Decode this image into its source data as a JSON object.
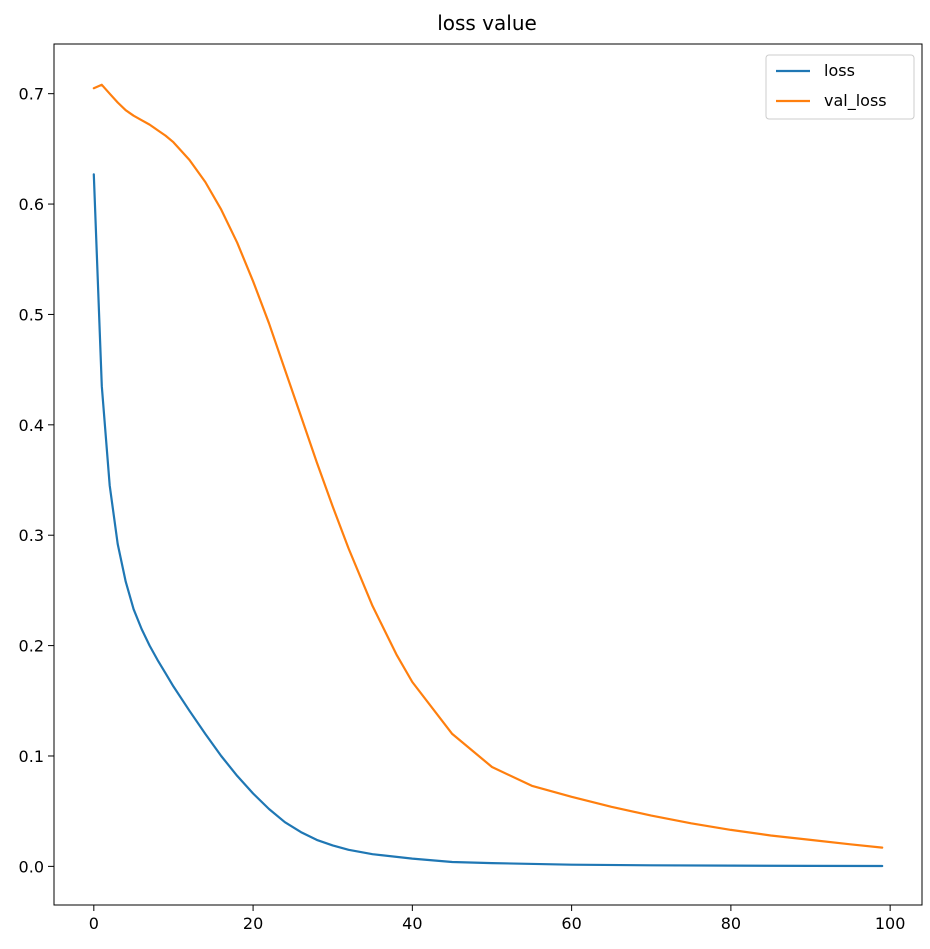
{
  "chart_data": {
    "type": "line",
    "title": "loss value",
    "xlabel": "",
    "ylabel": "",
    "xlim": [
      -5,
      104
    ],
    "ylim": [
      -0.035,
      0.745
    ],
    "xticks": [
      0,
      20,
      40,
      60,
      80,
      100
    ],
    "yticks": [
      0.0,
      0.1,
      0.2,
      0.3,
      0.4,
      0.5,
      0.6,
      0.7
    ],
    "xtick_labels": [
      "0",
      "20",
      "40",
      "60",
      "80",
      "100"
    ],
    "ytick_labels": [
      "0.0",
      "0.1",
      "0.2",
      "0.3",
      "0.4",
      "0.5",
      "0.6",
      "0.7"
    ],
    "grid": false,
    "legend_position": "top-right",
    "series": [
      {
        "name": "loss",
        "color": "#1f77b4",
        "x": [
          0,
          1,
          2,
          3,
          4,
          5,
          6,
          7,
          8,
          9,
          10,
          12,
          14,
          16,
          18,
          20,
          22,
          24,
          26,
          28,
          30,
          32,
          35,
          40,
          45,
          50,
          60,
          70,
          80,
          90,
          99
        ],
        "y": [
          0.627,
          0.435,
          0.345,
          0.292,
          0.258,
          0.233,
          0.215,
          0.2,
          0.187,
          0.175,
          0.163,
          0.141,
          0.12,
          0.1,
          0.082,
          0.066,
          0.052,
          0.04,
          0.031,
          0.024,
          0.019,
          0.015,
          0.011,
          0.007,
          0.004,
          0.003,
          0.0015,
          0.001,
          0.0007,
          0.0004,
          0.0003
        ]
      },
      {
        "name": "val_loss",
        "color": "#ff7f0e",
        "x": [
          0,
          1,
          2,
          3,
          4,
          5,
          6,
          7,
          8,
          9,
          10,
          12,
          14,
          16,
          18,
          20,
          22,
          24,
          26,
          28,
          30,
          32,
          35,
          38,
          40,
          45,
          50,
          55,
          60,
          65,
          70,
          75,
          80,
          85,
          90,
          95,
          99
        ],
        "y": [
          0.705,
          0.708,
          0.7,
          0.692,
          0.685,
          0.68,
          0.676,
          0.672,
          0.667,
          0.662,
          0.656,
          0.64,
          0.62,
          0.595,
          0.565,
          0.53,
          0.492,
          0.45,
          0.408,
          0.366,
          0.326,
          0.288,
          0.236,
          0.192,
          0.167,
          0.12,
          0.09,
          0.073,
          0.063,
          0.054,
          0.046,
          0.039,
          0.033,
          0.028,
          0.024,
          0.02,
          0.017
        ]
      }
    ]
  }
}
